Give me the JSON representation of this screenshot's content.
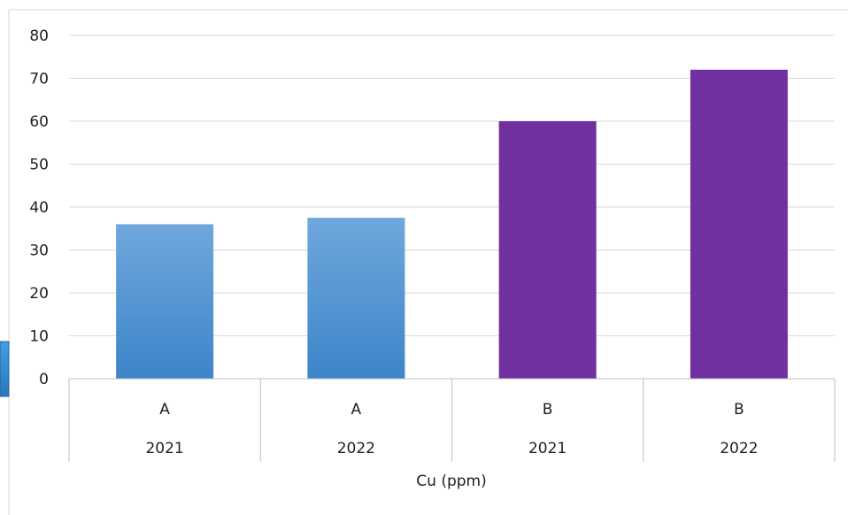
{
  "chart_data": {
    "type": "bar",
    "categories": [
      {
        "group": "A",
        "year": "2021"
      },
      {
        "group": "A",
        "year": "2022"
      },
      {
        "group": "B",
        "year": "2021"
      },
      {
        "group": "B",
        "year": "2022"
      }
    ],
    "values": [
      36,
      37.5,
      60,
      72
    ],
    "bar_colors": [
      "#4f95d6",
      "#4f95d6",
      "#7030a0",
      "#7030a0"
    ],
    "gradient": {
      "top": "#6fa7dc",
      "bottom": "#3d85c9"
    },
    "title": "",
    "xlabel": "Cu (ppm)",
    "ylabel": "",
    "ylim": [
      0,
      80
    ],
    "yticks": [
      "0",
      "10",
      "20",
      "30",
      "40",
      "50",
      "60",
      "70",
      "80"
    ],
    "grid": true,
    "legend": "left"
  }
}
